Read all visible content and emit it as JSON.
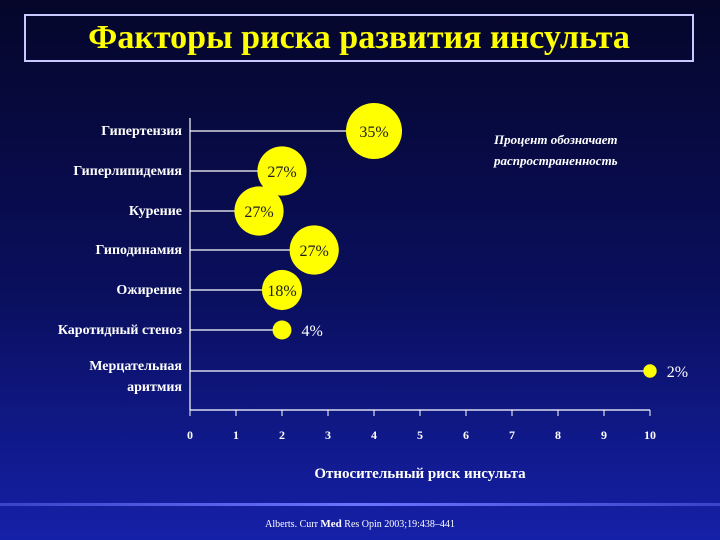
{
  "title": "Факторы риска развития инсульта",
  "note_line1": "Процент обозначает",
  "note_line2": "распространенность",
  "footer_pre": "Alberts. Curr ",
  "footer_bold": "Med",
  "footer_post": " Res Opin 2003;19:438–441",
  "chart_data": {
    "type": "scatter",
    "xlabel": "Относительный риск инсульта",
    "xlim": [
      0,
      10
    ],
    "xticks": [
      "0",
      "1",
      "2",
      "3",
      "4",
      "5",
      "6",
      "7",
      "8",
      "9",
      "10"
    ],
    "bubble_color": "#ffff00",
    "points": [
      {
        "label": [
          "Гипертензия"
        ],
        "x": 4.0,
        "prevalence": 35,
        "text": "35%"
      },
      {
        "label": [
          "Гиперлипидемия"
        ],
        "x": 2.0,
        "prevalence": 27,
        "text": "27%"
      },
      {
        "label": [
          "Курение"
        ],
        "x": 1.5,
        "prevalence": 27,
        "text": "27%"
      },
      {
        "label": [
          "Гиподинамия"
        ],
        "x": 2.7,
        "prevalence": 27,
        "text": "27%"
      },
      {
        "label": [
          "Ожирение"
        ],
        "x": 2.0,
        "prevalence": 18,
        "text": "18%"
      },
      {
        "label": [
          "Каротидный стеноз"
        ],
        "x": 2.0,
        "prevalence": 4,
        "text": "4%"
      },
      {
        "label": [
          "Мерцательная",
          "аритмия"
        ],
        "x": 10.0,
        "prevalence": 2,
        "text": "2%"
      }
    ]
  }
}
